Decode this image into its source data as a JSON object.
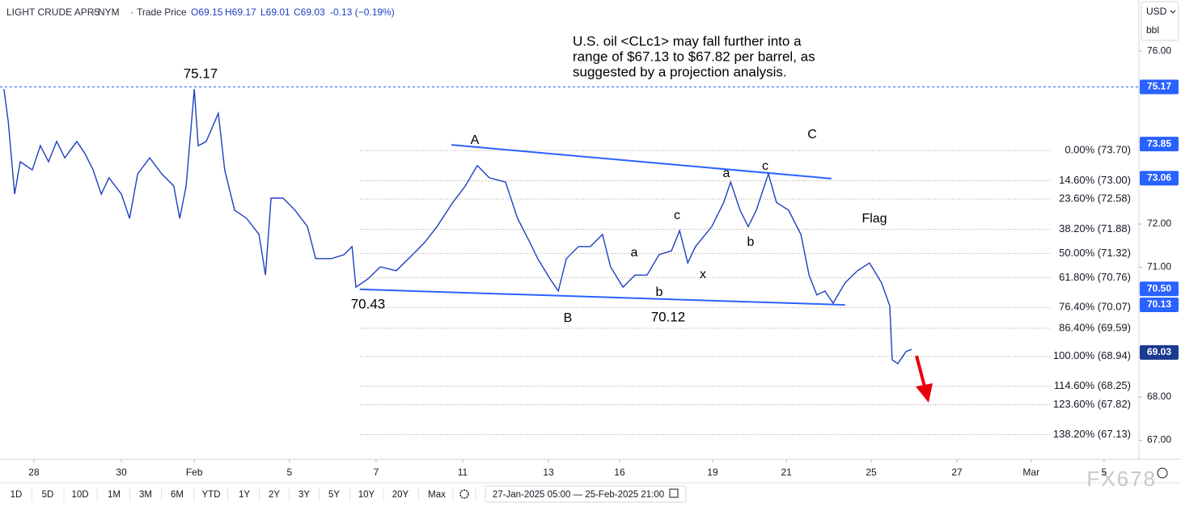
{
  "header": {
    "symbol": "LIGHT CRUDE APR5",
    "exchange": "NYM",
    "price_type": "Trade Price",
    "ohlc": [
      "O69.15",
      "H69.17",
      "L69.01",
      "C69.03"
    ],
    "change": "-0.13 (−0.19%)"
  },
  "currency": "USD",
  "unit": "bbl",
  "chart_data": {
    "type": "line",
    "color": "#1e3fbf",
    "x": [
      -0.7,
      -0.6,
      -0.45,
      -0.32,
      -0.04,
      0.15,
      0.34,
      0.53,
      0.72,
      1.0,
      1.19,
      1.38,
      1.57,
      1.75,
      2.04,
      2.23,
      2.42,
      2.7,
      2.98,
      3.26,
      3.4,
      3.55,
      3.74,
      3.83,
      4.02,
      4.3,
      4.45,
      4.68,
      4.96,
      5.25,
      5.4,
      5.53,
      5.81,
      6.09,
      6.38,
      6.57,
      6.94,
      7.23,
      7.42,
      7.51,
      7.79,
      8.08,
      8.45,
      8.74,
      9.11,
      9.4,
      9.77,
      10.06,
      10.34,
      10.62,
      11.0,
      11.28,
      11.57,
      11.75,
      12.04,
      12.23,
      12.42,
      12.7,
      12.98,
      13.26,
      13.45,
      13.74,
      14.02,
      14.3,
      14.58,
      14.87,
      15.06,
      15.25,
      15.43,
      15.81,
      16.09,
      16.25,
      16.47,
      16.66,
      16.85,
      17.13,
      17.32,
      17.6,
      17.89,
      18.08,
      18.26,
      18.45,
      18.64,
      18.92,
      19.21,
      19.49,
      19.77,
      19.96,
      20.02,
      20.15,
      20.34,
      20.47
    ],
    "values": [
      75.12,
      74.37,
      72.69,
      73.44,
      73.25,
      73.81,
      73.44,
      73.91,
      73.53,
      73.91,
      73.63,
      73.25,
      72.69,
      73.07,
      72.69,
      72.13,
      73.16,
      73.53,
      73.16,
      72.88,
      72.13,
      72.88,
      75.12,
      73.81,
      73.91,
      74.56,
      73.25,
      72.32,
      72.13,
      71.76,
      70.82,
      72.6,
      72.6,
      72.32,
      71.94,
      71.2,
      71.2,
      71.29,
      71.48,
      70.54,
      70.73,
      71.01,
      70.92,
      71.2,
      71.57,
      71.94,
      72.5,
      72.88,
      73.35,
      73.07,
      72.97,
      72.13,
      71.57,
      71.2,
      70.73,
      70.45,
      71.2,
      71.48,
      71.48,
      71.76,
      71.01,
      70.54,
      70.82,
      70.82,
      71.29,
      71.38,
      71.85,
      71.1,
      71.48,
      71.94,
      72.5,
      72.97,
      72.32,
      71.94,
      72.32,
      73.16,
      72.5,
      72.32,
      71.76,
      70.82,
      70.36,
      70.45,
      70.17,
      70.64,
      70.92,
      71.1,
      70.64,
      70.11,
      68.86,
      68.77,
      69.05,
      69.1
    ],
    "xlim": [
      -0.792,
      25.774
    ],
    "xticks": [
      {
        "value": 0,
        "label": "28"
      },
      {
        "value": 2.04,
        "label": "30"
      },
      {
        "value": 3.74,
        "label": "Feb"
      },
      {
        "value": 5.96,
        "label": "5"
      },
      {
        "value": 7.98,
        "label": "7"
      },
      {
        "value": 10,
        "label": "11"
      },
      {
        "value": 12,
        "label": "13"
      },
      {
        "value": 13.66,
        "label": "16"
      },
      {
        "value": 15.83,
        "label": "19"
      },
      {
        "value": 17.55,
        "label": "21"
      },
      {
        "value": 19.53,
        "label": "25"
      },
      {
        "value": 21.53,
        "label": "27"
      },
      {
        "value": 23.26,
        "label": "Mar"
      },
      {
        "value": 24.96,
        "label": "5"
      }
    ],
    "ylim": [
      66.56,
      77.18
    ],
    "yticks": [
      {
        "value": 76,
        "label": "76.00"
      },
      {
        "value": 72,
        "label": "72.00"
      },
      {
        "value": 71,
        "label": "71.00"
      },
      {
        "value": 68,
        "label": "68.00"
      },
      {
        "value": 67,
        "label": "67.00"
      }
    ],
    "trendlines": [
      {
        "color": "#2962ff",
        "x": [
          9.74,
          18.6
        ],
        "values": [
          73.83,
          73.05
        ]
      },
      {
        "color": "#2962ff",
        "x": [
          7.6,
          18.92
        ],
        "values": [
          70.49,
          70.13
        ]
      }
    ],
    "fib_levels": [
      {
        "value": 73.7,
        "label": "0.00% (73.70)"
      },
      {
        "value": 73.0,
        "label": "14.60% (73.00)"
      },
      {
        "value": 72.58,
        "label": "23.60% (72.58)"
      },
      {
        "value": 71.88,
        "label": "38.20% (71.88)"
      },
      {
        "value": 71.32,
        "label": "50.00% (71.32)"
      },
      {
        "value": 70.76,
        "label": "61.80% (70.76)"
      },
      {
        "value": 70.07,
        "label": "76.40% (70.07)"
      },
      {
        "value": 69.59,
        "label": "86.40% (69.59)"
      },
      {
        "value": 68.94,
        "label": "100.00% (68.94)"
      },
      {
        "value": 68.25,
        "label": "114.60% (68.25)"
      },
      {
        "value": 67.82,
        "label": "123.60% (67.82)"
      },
      {
        "value": 67.13,
        "label": "138.20% (67.13)"
      }
    ],
    "fib_color": "#b89a9a",
    "price_markers": [
      {
        "value": 75.17,
        "label": "75.17",
        "color": "#2962ff",
        "line": "dashed"
      },
      {
        "value": 73.85,
        "label": "73.85",
        "color": "#2962ff"
      },
      {
        "value": 73.06,
        "label": "73.06",
        "color": "#2962ff"
      },
      {
        "value": 70.5,
        "label": "70.50",
        "color": "#2962ff"
      },
      {
        "value": 70.13,
        "label": "70.13",
        "color": "#2962ff"
      },
      {
        "value": 69.03,
        "label": "69.03",
        "color": "#1a3a8f"
      }
    ],
    "annotation": [
      "U.S. oil <CLc1> may fall further into a",
      "range of $67.13 to $67.82 per barrel, as",
      "suggested by a projection analysis."
    ],
    "labels": [
      "75.17",
      "70.43",
      "70.12",
      "A",
      "B",
      "C",
      "a",
      "b",
      "c",
      "x",
      "a",
      "b",
      "c",
      "Flag"
    ]
  },
  "toolbar": {
    "ranges": [
      "1D",
      "5D",
      "10D",
      "1M",
      "3M",
      "6M",
      "YTD",
      "1Y",
      "2Y",
      "3Y",
      "5Y",
      "10Y",
      "20Y",
      "Max"
    ],
    "date_range": "27-Jan-2025 05:00 — 25-Feb-2025 21:00"
  },
  "watermark": "FX678"
}
